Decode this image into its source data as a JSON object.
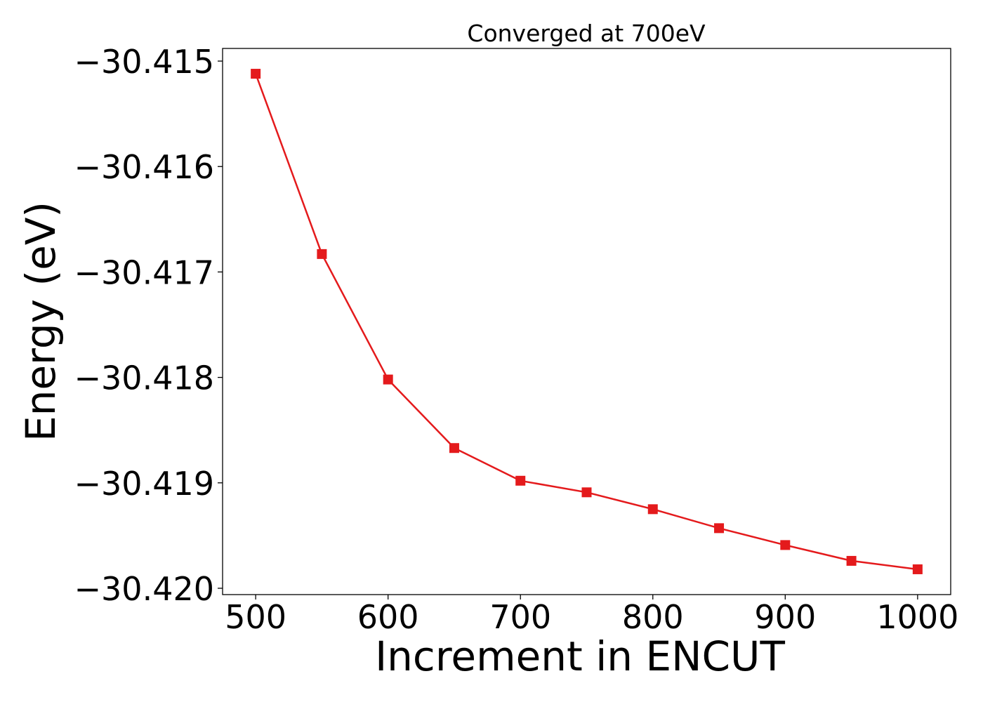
{
  "chart_data": {
    "type": "line",
    "title": "Converged at 700eV",
    "xlabel": "Increment in ENCUT",
    "ylabel": "Energy (eV)",
    "x": [
      500,
      550,
      600,
      650,
      700,
      750,
      800,
      850,
      900,
      950,
      1000
    ],
    "series": [
      {
        "values": [
          -30.41512,
          -30.41683,
          -30.41802,
          -30.41867,
          -30.41898,
          -30.41909,
          -30.41925,
          -30.41943,
          -30.41959,
          -30.41974,
          -30.41982
        ],
        "color": "#e41a1c",
        "marker": "square"
      }
    ],
    "xlim": [
      475,
      1025
    ],
    "ylim": [
      -30.42006,
      -30.41488
    ],
    "xticks": [
      500,
      600,
      700,
      800,
      900,
      1000
    ],
    "xtick_labels": [
      "500",
      "600",
      "700",
      "800",
      "900",
      "1000"
    ],
    "yticks": [
      -30.415,
      -30.416,
      -30.417,
      -30.418,
      -30.419,
      -30.42
    ],
    "ytick_labels": [
      "−30.415",
      "−30.416",
      "−30.417",
      "−30.418",
      "−30.419",
      "−30.420"
    ],
    "grid": false,
    "legend": "none"
  }
}
